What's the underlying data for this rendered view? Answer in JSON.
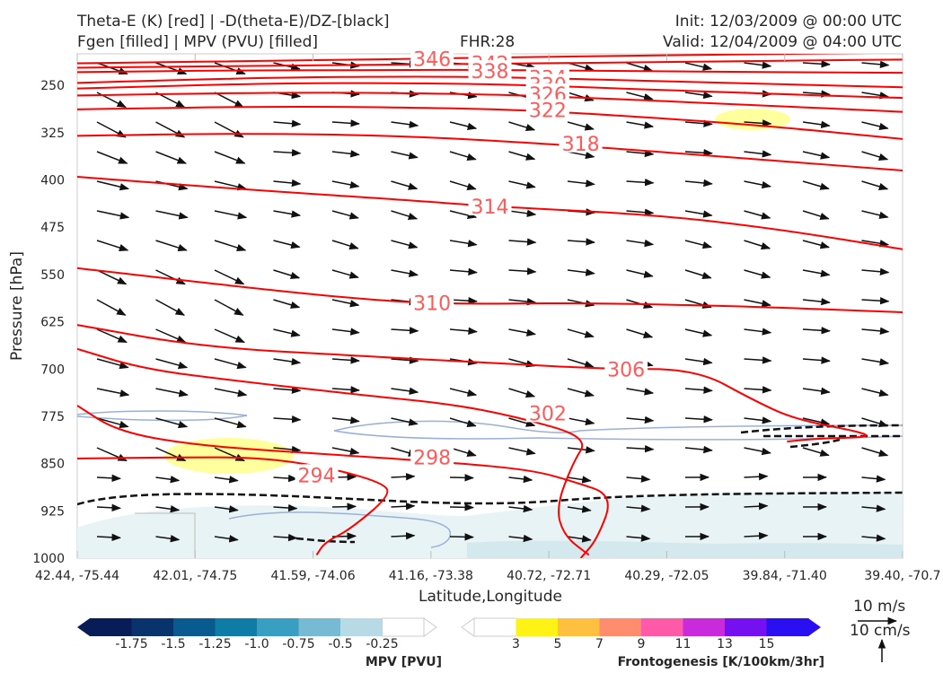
{
  "header": {
    "title_left_1": "Theta-E (K) [red] | -D(theta-E)/DZ-[black]",
    "title_left_2": "Fgen [filled] | MPV (PVU) [filled]",
    "fhr": "FHR:28",
    "init": "Init: 12/03/2009 @ 00:00 UTC",
    "valid": "Valid: 12/04/2009 @ 04:00 UTC"
  },
  "chart_data": {
    "type": "cross-section",
    "ylabel": "Pressure [hPa]",
    "xlabel": "Latitude,Longitude",
    "y_ticks": [
      250,
      325,
      400,
      475,
      550,
      625,
      700,
      775,
      850,
      925,
      1000
    ],
    "ylim": [
      1000,
      200
    ],
    "x_ticks": [
      "42.44, -75.44",
      "42.01, -74.75",
      "41.59, -74.06",
      "41.16, -73.38",
      "40.72, -72.71",
      "40.29, -72.05",
      "39.84, -71.40",
      "39.40, -70.7"
    ],
    "theta_e_color": "#ff0000",
    "theta_e_label_color": "#ff5a5a",
    "theta_e_contours": [
      {
        "label": "346",
        "points": [
          [
            0,
            215
          ],
          [
            0.3,
            210
          ],
          [
            0.45,
            207
          ],
          [
            0.6,
            204
          ],
          [
            0.8,
            201
          ],
          [
            1,
            198
          ]
        ]
      },
      {
        "label": "342",
        "points": [
          [
            0,
            222
          ],
          [
            0.3,
            218
          ],
          [
            0.47,
            216
          ],
          [
            0.65,
            214
          ],
          [
            0.85,
            211
          ],
          [
            1,
            209
          ]
        ]
      },
      {
        "label": "338",
        "points": [
          [
            0,
            229
          ],
          [
            0.2,
            226
          ],
          [
            0.4,
            226
          ],
          [
            0.48,
            225
          ],
          [
            0.7,
            228
          ],
          [
            1,
            230
          ]
        ]
      },
      {
        "label": "334",
        "points": [
          [
            0,
            246
          ],
          [
            0.25,
            237
          ],
          [
            0.45,
            236
          ],
          [
            0.55,
            238
          ],
          [
            0.75,
            245
          ],
          [
            1,
            253
          ]
        ]
      },
      {
        "label": "330",
        "points": [
          [
            0,
            255
          ],
          [
            0.25,
            246
          ],
          [
            0.45,
            247
          ],
          [
            0.56,
            250
          ],
          [
            0.8,
            262
          ],
          [
            1,
            270
          ]
        ]
      },
      {
        "label": "326",
        "points": [
          [
            0,
            266
          ],
          [
            0.25,
            261
          ],
          [
            0.45,
            263
          ],
          [
            0.57,
            267
          ],
          [
            0.8,
            280
          ],
          [
            1,
            292
          ]
        ]
      },
      {
        "label": "322",
        "points": [
          [
            0,
            288
          ],
          [
            0.25,
            283
          ],
          [
            0.45,
            286
          ],
          [
            0.56,
            290
          ],
          [
            0.8,
            310
          ],
          [
            1,
            335
          ]
        ]
      },
      {
        "label": "318",
        "points": [
          [
            0,
            330
          ],
          [
            0.2,
            326
          ],
          [
            0.4,
            330
          ],
          [
            0.6,
            345
          ],
          [
            0.8,
            365
          ],
          [
            1,
            385
          ]
        ]
      },
      {
        "label": "314",
        "points": [
          [
            0,
            395
          ],
          [
            0.2,
            415
          ],
          [
            0.4,
            432
          ],
          [
            0.5,
            442
          ],
          [
            0.7,
            455
          ],
          [
            0.85,
            478
          ],
          [
            1,
            510
          ]
        ]
      },
      {
        "label": "310",
        "points": [
          [
            0,
            540
          ],
          [
            0.2,
            570
          ],
          [
            0.35,
            590
          ],
          [
            0.45,
            597
          ],
          [
            0.6,
            595
          ],
          [
            0.8,
            600
          ],
          [
            1,
            610
          ]
        ]
      },
      {
        "label": "306",
        "points": [
          [
            0,
            630
          ],
          [
            0.15,
            665
          ],
          [
            0.35,
            680
          ],
          [
            0.5,
            690
          ],
          [
            0.64,
            700
          ],
          [
            0.75,
            700
          ],
          [
            0.82,
            750
          ],
          [
            0.87,
            780
          ],
          [
            0.95,
            800
          ],
          [
            0.96,
            808
          ],
          [
            0.9,
            810
          ],
          [
            0.86,
            815
          ]
        ]
      },
      {
        "label": "302",
        "points": [
          [
            0,
            668
          ],
          [
            0.08,
            700
          ],
          [
            0.2,
            720
          ],
          [
            0.35,
            742
          ],
          [
            0.45,
            755
          ],
          [
            0.53,
            775
          ],
          [
            0.62,
            808
          ],
          [
            0.6,
            850
          ],
          [
            0.58,
            920
          ],
          [
            0.59,
            965
          ],
          [
            0.62,
            995
          ]
        ]
      },
      {
        "label": "298",
        "points": [
          [
            0,
            758
          ],
          [
            0.05,
            800
          ],
          [
            0.15,
            822
          ],
          [
            0.3,
            835
          ],
          [
            0.45,
            848
          ],
          [
            0.55,
            860
          ],
          [
            0.6,
            878
          ],
          [
            0.65,
            900
          ],
          [
            0.63,
            970
          ],
          [
            0.61,
            1000
          ]
        ]
      },
      {
        "label": "294",
        "points": [
          [
            0,
            842
          ],
          [
            0.12,
            840
          ],
          [
            0.22,
            840
          ],
          [
            0.3,
            855
          ],
          [
            0.37,
            880
          ],
          [
            0.38,
            900
          ],
          [
            0.33,
            955
          ],
          [
            0.3,
            975
          ],
          [
            0.29,
            995
          ]
        ]
      }
    ],
    "frontogenesis_colorbar": {
      "title": "Frontogenesis [K/100km/3hr]",
      "ticks": [
        "3",
        "5",
        "7",
        "9",
        "11",
        "13",
        "15"
      ],
      "colors": [
        "#ffffff",
        "#fff315",
        "#ffc040",
        "#ff8c6c",
        "#ff5aa8",
        "#c82adc",
        "#7510f0",
        "#2a10f0"
      ]
    },
    "mpv_colorbar": {
      "title": "MPV [PVU]",
      "ticks": [
        "-1.75",
        "-1.5",
        "-1.25",
        "-1.0",
        "-0.75",
        "-0.5",
        "-0.25"
      ],
      "colors": [
        "#081d58",
        "#09336c",
        "#085a8f",
        "#0f7ca7",
        "#389ec2",
        "#77bad3",
        "#b7dae6",
        "#ffffff"
      ]
    },
    "wind_scale": {
      "horizontal": "10 m/s",
      "vertical": "10 cm/s"
    }
  }
}
